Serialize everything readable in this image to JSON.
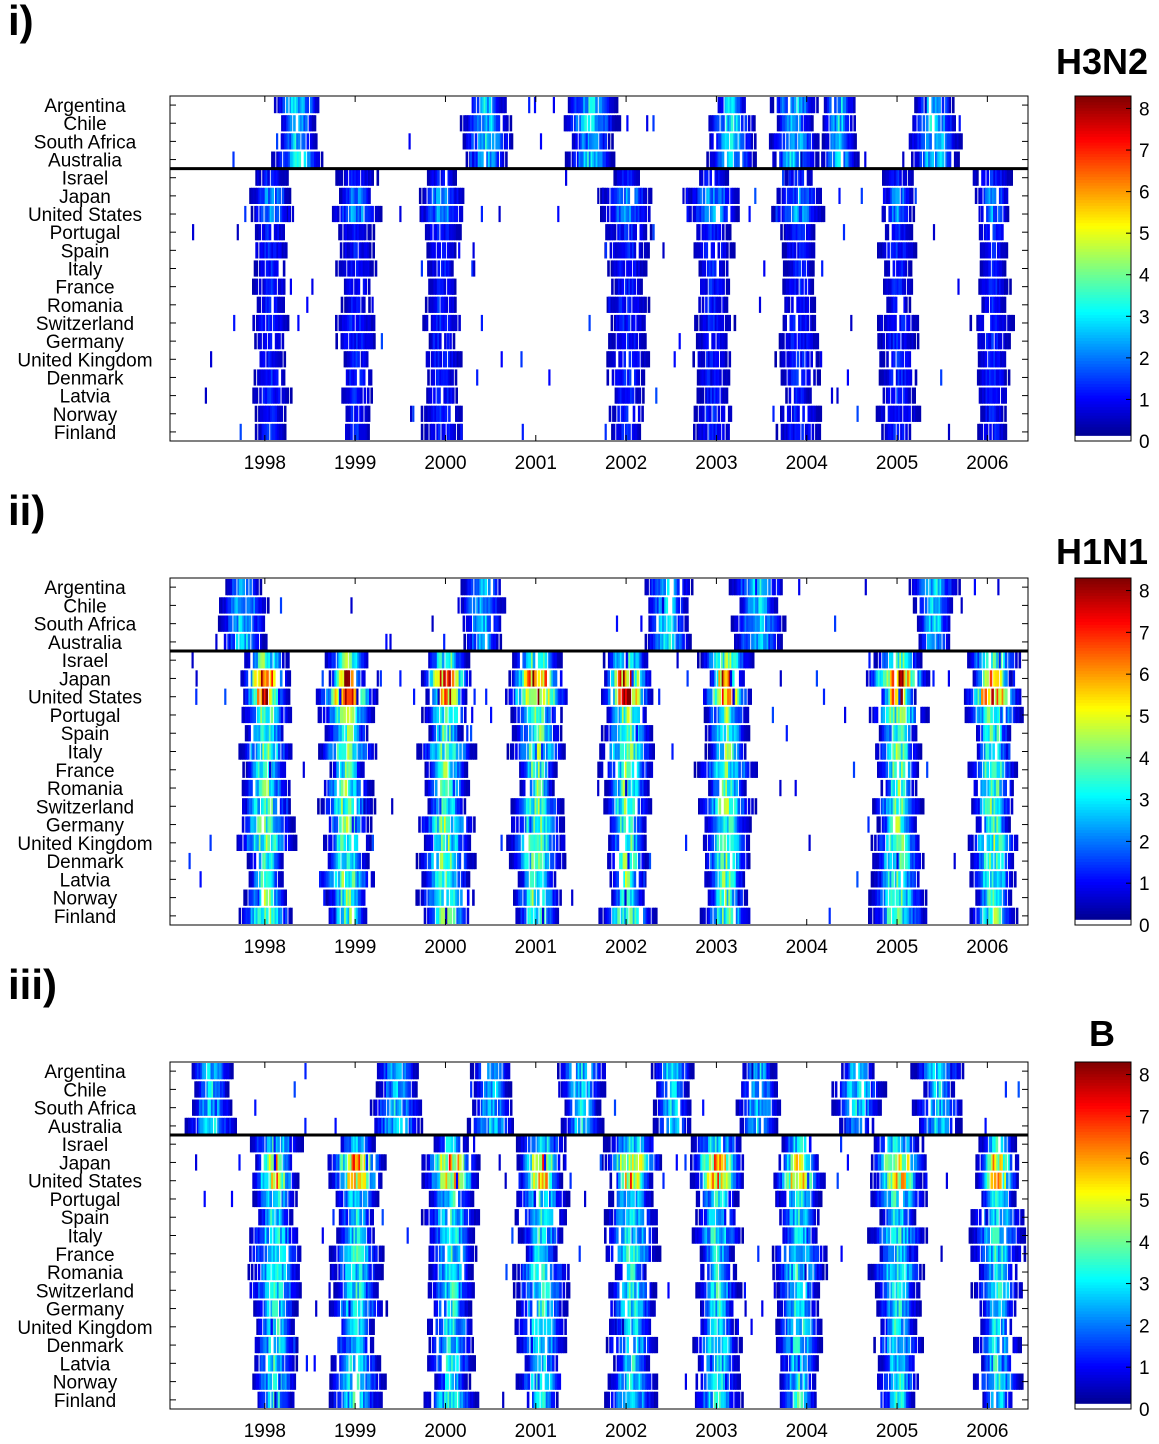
{
  "chart_data": [
    {
      "type": "heatmap",
      "panel_label": "i)",
      "virus": "H3N2",
      "countries": [
        "Argentina",
        "Chile",
        "South Africa",
        "Australia",
        "Israel",
        "Japan",
        "United States",
        "Portugal",
        "Spain",
        "Italy",
        "France",
        "Romania",
        "Switzerland",
        "Germany",
        "United Kingdom",
        "Denmark",
        "Latvia",
        "Norway",
        "Finland"
      ],
      "x_ticks": [
        "1998",
        "1999",
        "2000",
        "2001",
        "2002",
        "2003",
        "2004",
        "2005",
        "2006"
      ],
      "xlim": [
        1997.05,
        2006.55
      ],
      "colorbar_ticks": [
        0,
        1,
        2,
        3,
        4,
        5,
        6,
        7,
        8
      ],
      "colorbar_range": [
        0,
        8.3
      ],
      "divider_after": "Australia",
      "colormap": "jet",
      "season_peaks": {
        "south": [
          1998.45,
          2000.55,
          2001.7,
          2003.25,
          2003.95,
          2004.45,
          2005.5
        ],
        "north": [
          1998.15,
          1999.1,
          2000.05,
          2002.1,
          2003.05,
          2004.0,
          2005.1,
          2006.15
        ]
      }
    },
    {
      "type": "heatmap",
      "panel_label": "ii)",
      "virus": "H1N1",
      "countries": [
        "Argentina",
        "Chile",
        "South Africa",
        "Australia",
        "Israel",
        "Japan",
        "United States",
        "Portugal",
        "Spain",
        "Italy",
        "France",
        "Romania",
        "Switzerland",
        "Germany",
        "United Kingdom",
        "Denmark",
        "Latvia",
        "Norway",
        "Finland"
      ],
      "x_ticks": [
        "1998",
        "1999",
        "2000",
        "2001",
        "2002",
        "2003",
        "2004",
        "2005",
        "2006"
      ],
      "xlim": [
        1997.05,
        2006.55
      ],
      "colorbar_ticks": [
        0,
        1,
        2,
        3,
        4,
        5,
        6,
        7,
        8
      ],
      "colorbar_range": [
        0,
        8.3
      ],
      "divider_after": "Australia",
      "colormap": "jet",
      "season_peaks": {
        "south": [
          1997.85,
          2000.5,
          2002.55,
          2003.55,
          2005.5
        ],
        "north": [
          1998.1,
          1999.0,
          2000.1,
          2001.1,
          2002.1,
          2003.2,
          2005.1,
          2006.15
        ]
      }
    },
    {
      "type": "heatmap",
      "panel_label": "iii)",
      "virus": "B",
      "countries": [
        "Argentina",
        "Chile",
        "South Africa",
        "Australia",
        "Israel",
        "Japan",
        "United States",
        "Portugal",
        "Spain",
        "Italy",
        "France",
        "Romania",
        "Switzerland",
        "Germany",
        "United Kingdom",
        "Denmark",
        "Latvia",
        "Norway",
        "Finland"
      ],
      "x_ticks": [
        "1998",
        "1999",
        "2000",
        "2001",
        "2002",
        "2003",
        "2004",
        "2005",
        "2006"
      ],
      "xlim": [
        1997.05,
        2006.55
      ],
      "colorbar_ticks": [
        0,
        1,
        2,
        3,
        4,
        5,
        6,
        7,
        8
      ],
      "colorbar_range": [
        0,
        8.3
      ],
      "divider_after": "Australia",
      "colormap": "jet",
      "season_peaks": {
        "south": [
          1997.5,
          1999.55,
          2000.6,
          2001.6,
          2002.6,
          2003.55,
          2004.65,
          2005.55
        ],
        "north": [
          1998.2,
          1999.1,
          2000.15,
          2001.15,
          2002.15,
          2003.1,
          2004.0,
          2005.1,
          2006.2
        ]
      }
    }
  ]
}
